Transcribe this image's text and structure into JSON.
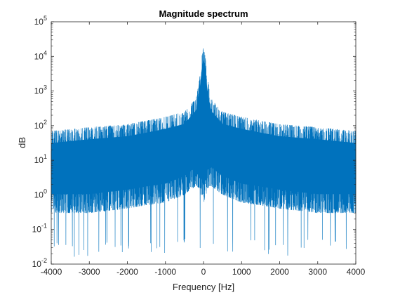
{
  "chart_data": {
    "type": "line",
    "title": "Magnitude spectrum",
    "xlabel": "Frequency [Hz]",
    "ylabel": "dB",
    "xlim": [
      -4000,
      4000
    ],
    "ylim": [
      0.01,
      100000
    ],
    "y_scale": "log",
    "grid": false,
    "legend": "none",
    "x_ticks": [
      "-4000",
      "-3000",
      "-2000",
      "-1000",
      "0",
      "1000",
      "2000",
      "3000",
      "4000"
    ],
    "y_ticks": [
      {
        "base": "10",
        "exp": "-2"
      },
      {
        "base": "10",
        "exp": "-1"
      },
      {
        "base": "10",
        "exp": "0"
      },
      {
        "base": "10",
        "exp": "1"
      },
      {
        "base": "10",
        "exp": "2"
      },
      {
        "base": "10",
        "exp": "3"
      },
      {
        "base": "10",
        "exp": "4"
      },
      {
        "base": "10",
        "exp": "5"
      }
    ],
    "envelope": {
      "x": [
        -4000,
        -3000,
        -2000,
        -1500,
        -1000,
        -500,
        -200,
        -100,
        -50,
        0,
        50,
        100,
        200,
        500,
        1000,
        1500,
        2000,
        3000,
        4000
      ],
      "upper": [
        70,
        90,
        110,
        140,
        180,
        250,
        600,
        2500,
        9000,
        20000,
        9000,
        2500,
        600,
        250,
        180,
        140,
        110,
        90,
        70
      ],
      "lower": [
        0.3,
        0.3,
        0.4,
        0.5,
        0.6,
        1.0,
        1.8,
        1.5,
        0.8,
        0.5,
        0.8,
        1.5,
        1.8,
        1.0,
        0.6,
        0.5,
        0.4,
        0.3,
        0.3
      ],
      "min_spikes": [
        0.02,
        0.03,
        0.04,
        0.03,
        0.02
      ]
    },
    "series_color": "#0072bd"
  }
}
